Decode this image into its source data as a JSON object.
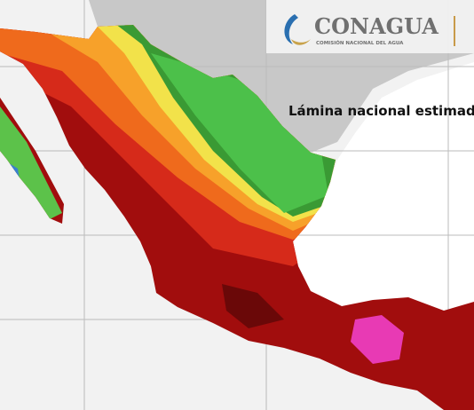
{
  "header": {
    "logo_text": "CONAGUA",
    "logo_subtitle": "COMISIÓN NACIONAL DEL AGUA"
  },
  "map": {
    "title": "Lámina nacional estimada"
  }
}
